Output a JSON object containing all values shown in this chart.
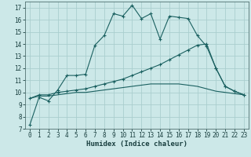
{
  "title": "",
  "xlabel": "Humidex (Indice chaleur)",
  "bg_color": "#cce8e8",
  "grid_color": "#aacece",
  "line_color": "#1a6060",
  "xlim": [
    -0.5,
    23.5
  ],
  "ylim": [
    7,
    17.5
  ],
  "xticks": [
    0,
    1,
    2,
    3,
    4,
    5,
    6,
    7,
    8,
    9,
    10,
    11,
    12,
    13,
    14,
    15,
    16,
    17,
    18,
    19,
    20,
    21,
    22,
    23
  ],
  "yticks": [
    7,
    8,
    9,
    10,
    11,
    12,
    13,
    14,
    15,
    16,
    17
  ],
  "curve1_x": [
    0,
    1,
    2,
    3,
    4,
    5,
    6,
    7,
    8,
    9,
    10,
    11,
    12,
    13,
    14,
    15,
    16,
    17,
    18,
    19,
    20,
    21,
    22,
    23
  ],
  "curve1_y": [
    7.3,
    9.6,
    9.3,
    10.2,
    11.4,
    11.4,
    11.5,
    13.9,
    14.7,
    16.5,
    16.3,
    17.2,
    16.1,
    16.5,
    14.4,
    16.3,
    16.2,
    16.1,
    14.7,
    13.8,
    12.0,
    10.5,
    10.1,
    9.8
  ],
  "curve2_x": [
    0,
    1,
    2,
    3,
    4,
    5,
    6,
    7,
    8,
    9,
    10,
    11,
    12,
    13,
    14,
    15,
    16,
    17,
    18,
    19,
    20,
    21,
    22,
    23
  ],
  "curve2_y": [
    9.5,
    9.8,
    9.8,
    10.0,
    10.1,
    10.2,
    10.3,
    10.5,
    10.7,
    10.9,
    11.1,
    11.4,
    11.7,
    12.0,
    12.3,
    12.7,
    13.1,
    13.5,
    13.9,
    14.0,
    12.0,
    10.5,
    10.1,
    9.8
  ],
  "curve3_x": [
    0,
    1,
    2,
    3,
    4,
    5,
    6,
    7,
    8,
    9,
    10,
    11,
    12,
    13,
    14,
    15,
    16,
    17,
    18,
    19,
    20,
    21,
    22,
    23
  ],
  "curve3_y": [
    9.5,
    9.7,
    9.7,
    9.8,
    9.9,
    10.0,
    10.0,
    10.1,
    10.2,
    10.3,
    10.4,
    10.5,
    10.6,
    10.7,
    10.7,
    10.7,
    10.7,
    10.6,
    10.5,
    10.3,
    10.1,
    10.0,
    9.9,
    9.8
  ],
  "tick_fontsize": 5.5,
  "xlabel_fontsize": 6.5
}
